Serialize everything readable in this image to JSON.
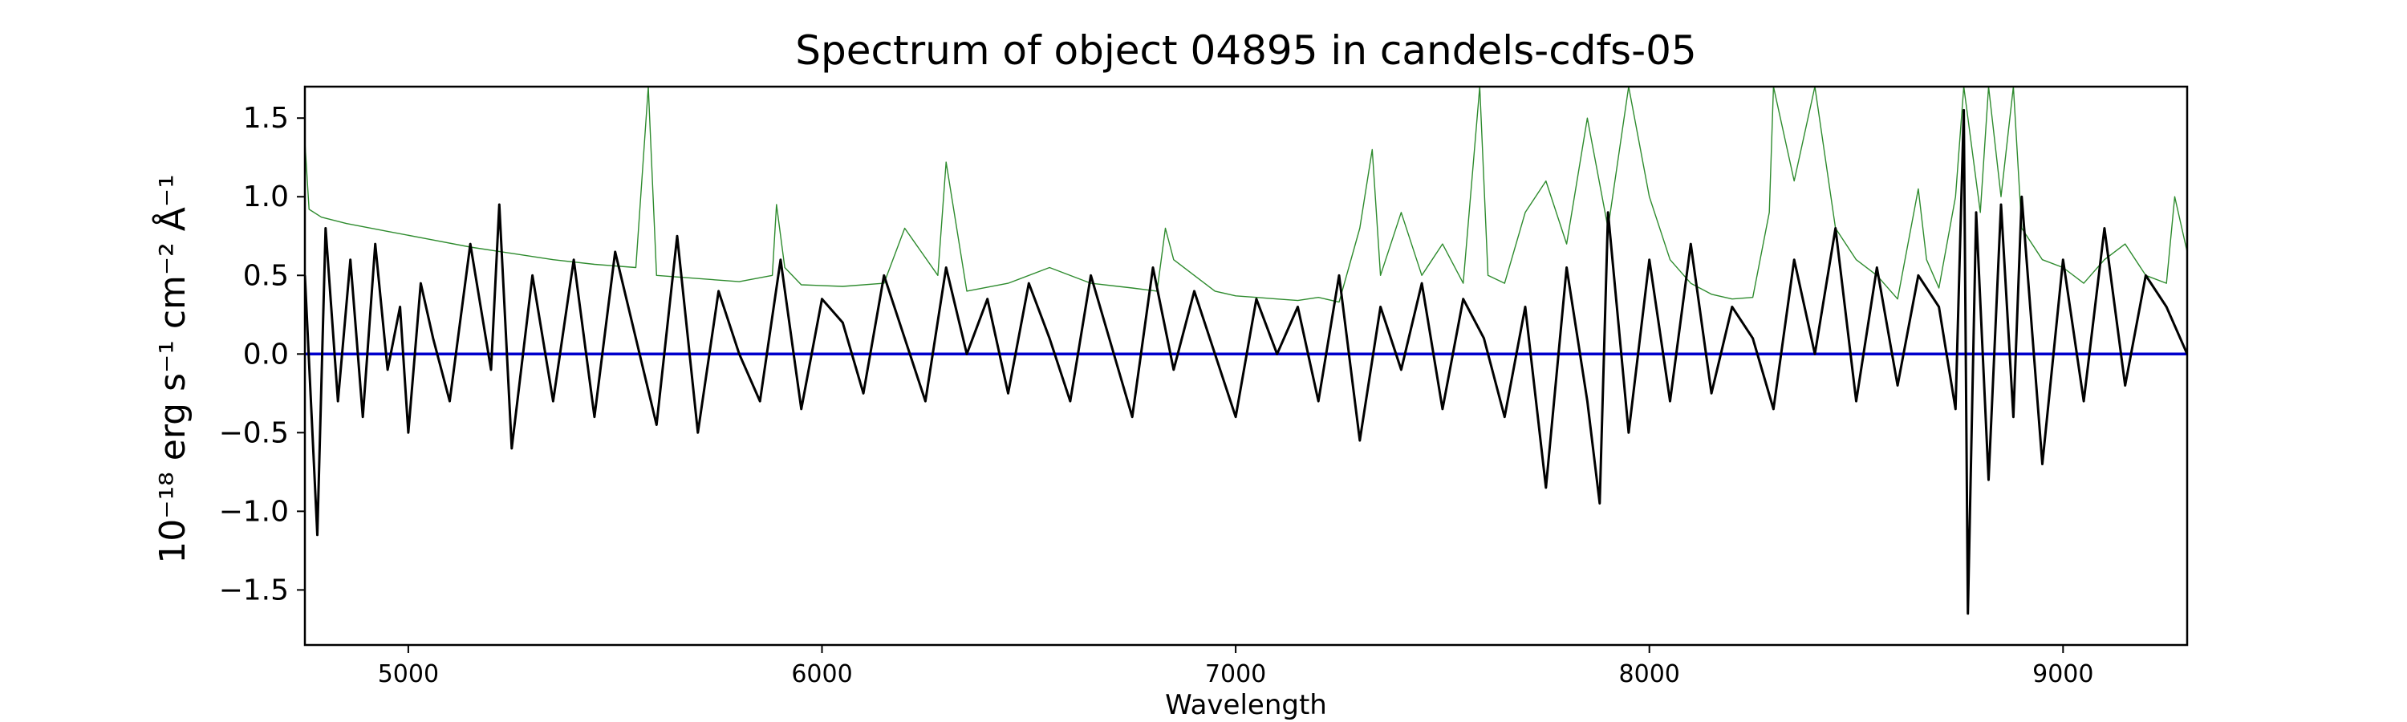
{
  "chart_data": {
    "type": "line",
    "title": "Spectrum of object 04895 in candels-cdfs-05",
    "xlabel": "Wavelength",
    "ylabel": "10⁻¹⁸ erg s⁻¹ cm⁻² Å⁻¹",
    "xlim": [
      4750,
      9300
    ],
    "ylim": [
      -1.85,
      1.7
    ],
    "xticks": [
      5000,
      6000,
      7000,
      8000,
      9000
    ],
    "yticks": [
      -1.5,
      -1.0,
      -0.5,
      0.0,
      0.5,
      1.0,
      1.5
    ],
    "ytick_labels": [
      "−1.5",
      "−1.0",
      "−0.5",
      "0.0",
      "0.5",
      "1.0",
      "1.5"
    ],
    "grid": false,
    "series": [
      {
        "role": "flux",
        "color": "#000000",
        "x": [
          4750,
          4780,
          4800,
          4830,
          4860,
          4890,
          4920,
          4950,
          4980,
          5000,
          5030,
          5060,
          5100,
          5150,
          5200,
          5220,
          5250,
          5300,
          5350,
          5400,
          5450,
          5500,
          5550,
          5600,
          5650,
          5700,
          5750,
          5800,
          5850,
          5900,
          5950,
          6000,
          6050,
          6100,
          6150,
          6200,
          6250,
          6300,
          6350,
          6400,
          6450,
          6500,
          6550,
          6600,
          6650,
          6700,
          6750,
          6800,
          6850,
          6900,
          6950,
          7000,
          7050,
          7100,
          7150,
          7200,
          7250,
          7300,
          7350,
          7400,
          7450,
          7500,
          7550,
          7600,
          7650,
          7700,
          7750,
          7800,
          7850,
          7880,
          7900,
          7950,
          8000,
          8050,
          8100,
          8150,
          8200,
          8250,
          8300,
          8350,
          8400,
          8450,
          8500,
          8550,
          8600,
          8650,
          8700,
          8740,
          8760,
          8770,
          8790,
          8820,
          8850,
          8880,
          8900,
          8950,
          9000,
          9050,
          9100,
          9150,
          9200,
          9250,
          9300
        ],
        "y": [
          0.5,
          -1.15,
          0.8,
          -0.3,
          0.6,
          -0.4,
          0.7,
          -0.1,
          0.3,
          -0.5,
          0.45,
          0.1,
          -0.3,
          0.7,
          -0.1,
          0.95,
          -0.6,
          0.5,
          -0.3,
          0.6,
          -0.4,
          0.65,
          0.1,
          -0.45,
          0.75,
          -0.5,
          0.4,
          0.0,
          -0.3,
          0.6,
          -0.35,
          0.35,
          0.2,
          -0.25,
          0.5,
          0.1,
          -0.3,
          0.55,
          0.0,
          0.35,
          -0.25,
          0.45,
          0.1,
          -0.3,
          0.5,
          0.05,
          -0.4,
          0.55,
          -0.1,
          0.4,
          0.0,
          -0.4,
          0.35,
          0.0,
          0.3,
          -0.3,
          0.5,
          -0.55,
          0.3,
          -0.1,
          0.45,
          -0.35,
          0.35,
          0.1,
          -0.4,
          0.3,
          -0.85,
          0.55,
          -0.3,
          -0.95,
          0.9,
          -0.5,
          0.6,
          -0.3,
          0.7,
          -0.25,
          0.3,
          0.1,
          -0.35,
          0.6,
          0.0,
          0.8,
          -0.3,
          0.55,
          -0.2,
          0.5,
          0.3,
          -0.35,
          1.55,
          -1.65,
          0.9,
          -0.8,
          0.95,
          -0.4,
          1.0,
          -0.7,
          0.6,
          -0.3,
          0.8,
          -0.2,
          0.5,
          0.3,
          0.0
        ]
      },
      {
        "role": "error",
        "color": "#2e8b2e",
        "x": [
          4750,
          4760,
          4790,
          4850,
          4950,
          5050,
          5150,
          5250,
          5350,
          5450,
          5550,
          5580,
          5600,
          5700,
          5800,
          5880,
          5890,
          5910,
          5950,
          6050,
          6150,
          6200,
          6280,
          6300,
          6350,
          6450,
          6550,
          6650,
          6750,
          6810,
          6830,
          6850,
          6900,
          6950,
          7000,
          7050,
          7100,
          7150,
          7200,
          7250,
          7300,
          7330,
          7350,
          7400,
          7450,
          7500,
          7550,
          7590,
          7610,
          7650,
          7700,
          7750,
          7800,
          7850,
          7900,
          7950,
          8000,
          8050,
          8100,
          8150,
          8200,
          8250,
          8290,
          8300,
          8350,
          8400,
          8450,
          8500,
          8550,
          8600,
          8650,
          8670,
          8700,
          8740,
          8760,
          8800,
          8820,
          8850,
          8880,
          8900,
          8950,
          9000,
          9050,
          9100,
          9150,
          9200,
          9250,
          9270,
          9300
        ],
        "y": [
          1.35,
          0.92,
          0.87,
          0.83,
          0.78,
          0.73,
          0.68,
          0.64,
          0.6,
          0.57,
          0.55,
          1.7,
          0.5,
          0.48,
          0.46,
          0.5,
          0.95,
          0.55,
          0.44,
          0.43,
          0.45,
          0.8,
          0.5,
          1.22,
          0.4,
          0.45,
          0.55,
          0.45,
          0.42,
          0.4,
          0.8,
          0.6,
          0.5,
          0.4,
          0.37,
          0.36,
          0.35,
          0.34,
          0.36,
          0.33,
          0.8,
          1.3,
          0.5,
          0.9,
          0.5,
          0.7,
          0.45,
          1.7,
          0.5,
          0.45,
          0.9,
          1.1,
          0.7,
          1.5,
          0.8,
          1.7,
          1.0,
          0.6,
          0.45,
          0.38,
          0.35,
          0.36,
          0.9,
          1.7,
          1.1,
          1.7,
          0.8,
          0.6,
          0.5,
          0.35,
          1.05,
          0.6,
          0.42,
          1.0,
          1.7,
          0.9,
          1.7,
          1.0,
          1.7,
          0.8,
          0.6,
          0.55,
          0.45,
          0.6,
          0.7,
          0.5,
          0.45,
          1.0,
          0.65
        ]
      },
      {
        "role": "continuum",
        "color": "#0000cc",
        "x": [
          4750,
          9300
        ],
        "y": [
          0.0,
          0.0
        ]
      }
    ]
  }
}
